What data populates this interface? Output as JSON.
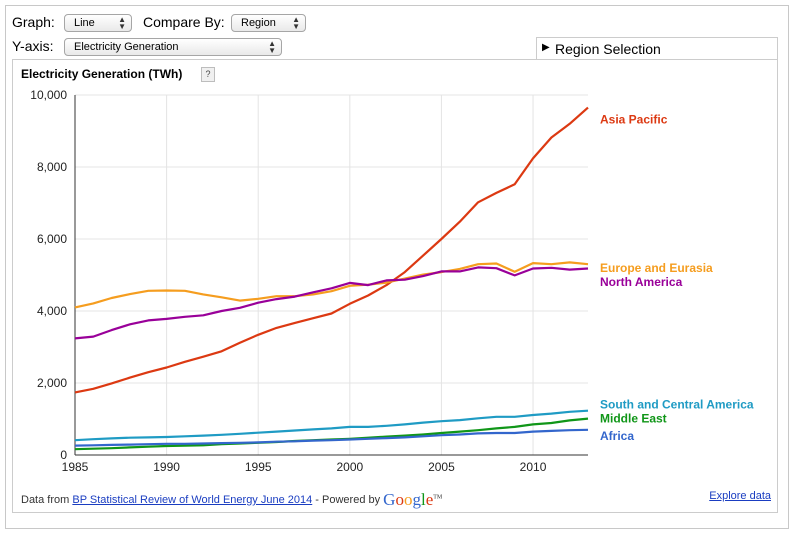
{
  "controls": {
    "graph_label": "Graph:",
    "graph_value": "Line",
    "compare_label": "Compare By:",
    "compare_value": "Region",
    "yaxis_label": "Y-axis:",
    "yaxis_value": "Electricity Generation"
  },
  "region_selection": {
    "label": "Region Selection",
    "icon": "triangle-right-icon"
  },
  "help_label": "?",
  "footer": {
    "prefix": "Data from ",
    "source_link": "BP Statistical Review of World Energy June 2014",
    "powered_by": " - Powered by ",
    "logo": "Google",
    "tm": "TM",
    "explore": "Explore data"
  },
  "chart_data": {
    "type": "line",
    "title": "Electricity Generation (TWh)",
    "xlabel": "",
    "ylabel": "",
    "xlim": [
      1985,
      2013
    ],
    "ylim": [
      0,
      10000
    ],
    "x_ticks": [
      1985,
      1990,
      1995,
      2000,
      2005,
      2010
    ],
    "y_ticks": [
      0,
      2000,
      4000,
      6000,
      8000,
      10000
    ],
    "y_tick_labels": [
      "0",
      "2,000",
      "4,000",
      "6,000",
      "8,000",
      "10,000"
    ],
    "grid": true,
    "legend": "right (inline labels)",
    "x": [
      1985,
      1986,
      1987,
      1988,
      1989,
      1990,
      1991,
      1992,
      1993,
      1994,
      1995,
      1996,
      1997,
      1998,
      1999,
      2000,
      2001,
      2002,
      2003,
      2004,
      2005,
      2006,
      2007,
      2008,
      2009,
      2010,
      2011,
      2012,
      2013
    ],
    "series": [
      {
        "name": "Asia Pacific",
        "color": "#dc3912",
        "values": [
          1740,
          1840,
          1990,
          2150,
          2300,
          2430,
          2590,
          2730,
          2880,
          3120,
          3340,
          3530,
          3670,
          3800,
          3930,
          4200,
          4430,
          4720,
          5080,
          5540,
          6000,
          6480,
          7020,
          7280,
          7520,
          8240,
          8820,
          9200,
          9650
        ]
      },
      {
        "name": "Europe and Eurasia",
        "color": "#f59d1f",
        "values": [
          4100,
          4210,
          4360,
          4470,
          4560,
          4570,
          4560,
          4460,
          4380,
          4290,
          4340,
          4410,
          4410,
          4460,
          4550,
          4700,
          4730,
          4790,
          4900,
          5010,
          5080,
          5170,
          5300,
          5320,
          5090,
          5330,
          5300,
          5350,
          5300
        ]
      },
      {
        "name": "North America",
        "color": "#990099",
        "values": [
          3240,
          3290,
          3470,
          3630,
          3740,
          3780,
          3840,
          3880,
          4000,
          4090,
          4230,
          4330,
          4400,
          4520,
          4630,
          4780,
          4720,
          4850,
          4870,
          4970,
          5100,
          5100,
          5210,
          5190,
          4990,
          5180,
          5200,
          5150,
          5180
        ]
      },
      {
        "name": "South and Central America",
        "color": "#1f9bc4",
        "values": [
          410,
          440,
          460,
          480,
          490,
          500,
          520,
          540,
          560,
          590,
          620,
          650,
          680,
          710,
          740,
          780,
          780,
          810,
          850,
          900,
          940,
          970,
          1020,
          1060,
          1060,
          1110,
          1150,
          1200,
          1230
        ]
      },
      {
        "name": "Middle East",
        "color": "#109618",
        "values": [
          160,
          175,
          190,
          210,
          230,
          250,
          260,
          270,
          300,
          320,
          340,
          360,
          390,
          410,
          430,
          450,
          480,
          510,
          540,
          570,
          610,
          650,
          690,
          740,
          780,
          850,
          890,
          960,
          1010
        ]
      },
      {
        "name": "Africa",
        "color": "#3366cc",
        "values": [
          260,
          270,
          280,
          290,
          300,
          310,
          310,
          320,
          330,
          340,
          350,
          370,
          380,
          400,
          410,
          430,
          450,
          470,
          490,
          520,
          550,
          570,
          600,
          610,
          610,
          650,
          670,
          690,
          700
        ]
      }
    ]
  }
}
